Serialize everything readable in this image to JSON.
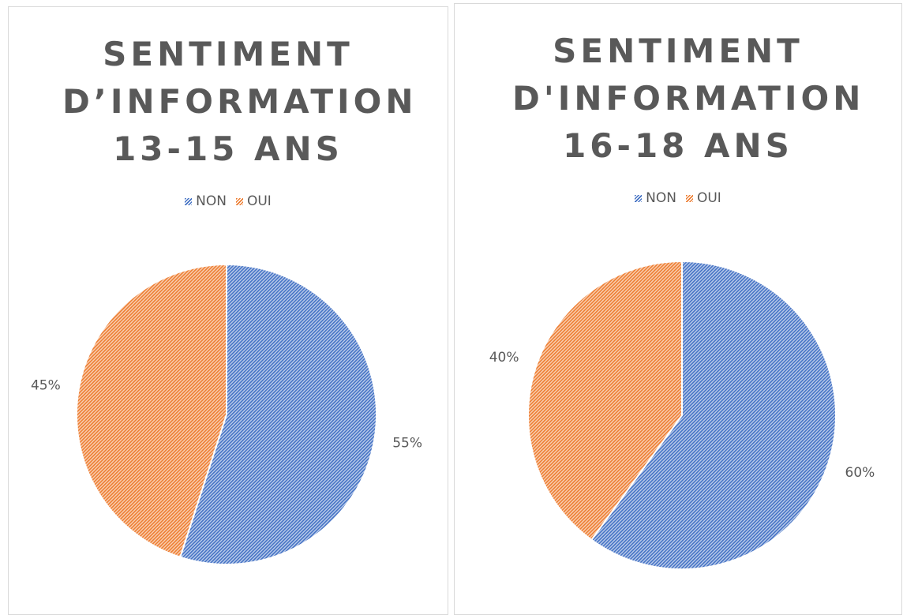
{
  "chart_data": [
    {
      "type": "pie",
      "title": "SENTIMENT D’INFORMATION 13-15 ANS",
      "categories": [
        "NON",
        "OUI"
      ],
      "values": [
        55,
        45
      ],
      "value_labels": [
        "55%",
        "45%"
      ],
      "colors": [
        "#4472c4",
        "#ed7d31"
      ],
      "legend": "top"
    },
    {
      "type": "pie",
      "title": "SENTIMENT D'INFORMATION 16-18 ANS",
      "categories": [
        "NON",
        "OUI"
      ],
      "values": [
        60,
        40
      ],
      "value_labels": [
        "60%",
        "40%"
      ],
      "colors": [
        "#4472c4",
        "#ed7d31"
      ],
      "legend": "top"
    }
  ]
}
